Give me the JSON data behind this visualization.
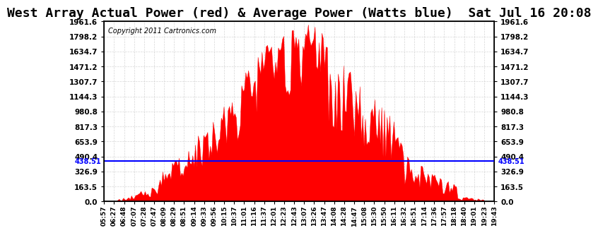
{
  "title": "West Array Actual Power (red) & Average Power (Watts blue)  Sat Jul 16 20:08",
  "copyright": "Copyright 2011 Cartronics.com",
  "average_power": 438.51,
  "y_max": 1961.6,
  "y_ticks": [
    0.0,
    163.5,
    326.9,
    490.4,
    653.9,
    817.3,
    980.8,
    1144.3,
    1307.7,
    1471.2,
    1634.7,
    1798.2,
    1961.6
  ],
  "background_color": "#ffffff",
  "plot_bg_color": "#ffffff",
  "grid_color": "#cccccc",
  "bar_color": "#ff0000",
  "line_color": "#0000ff",
  "title_fontsize": 13,
  "x_labels": [
    "05:57",
    "06:27",
    "06:48",
    "07:07",
    "07:28",
    "07:47",
    "08:09",
    "08:29",
    "08:51",
    "09:14",
    "09:33",
    "09:56",
    "10:15",
    "10:37",
    "11:01",
    "11:16",
    "11:37",
    "12:01",
    "12:23",
    "12:43",
    "13:07",
    "13:26",
    "13:47",
    "14:08",
    "14:28",
    "14:47",
    "15:08",
    "15:30",
    "15:50",
    "16:11",
    "16:32",
    "16:51",
    "17:14",
    "17:36",
    "17:57",
    "18:18",
    "18:40",
    "19:01",
    "19:23",
    "19:43"
  ],
  "n_points": 288
}
